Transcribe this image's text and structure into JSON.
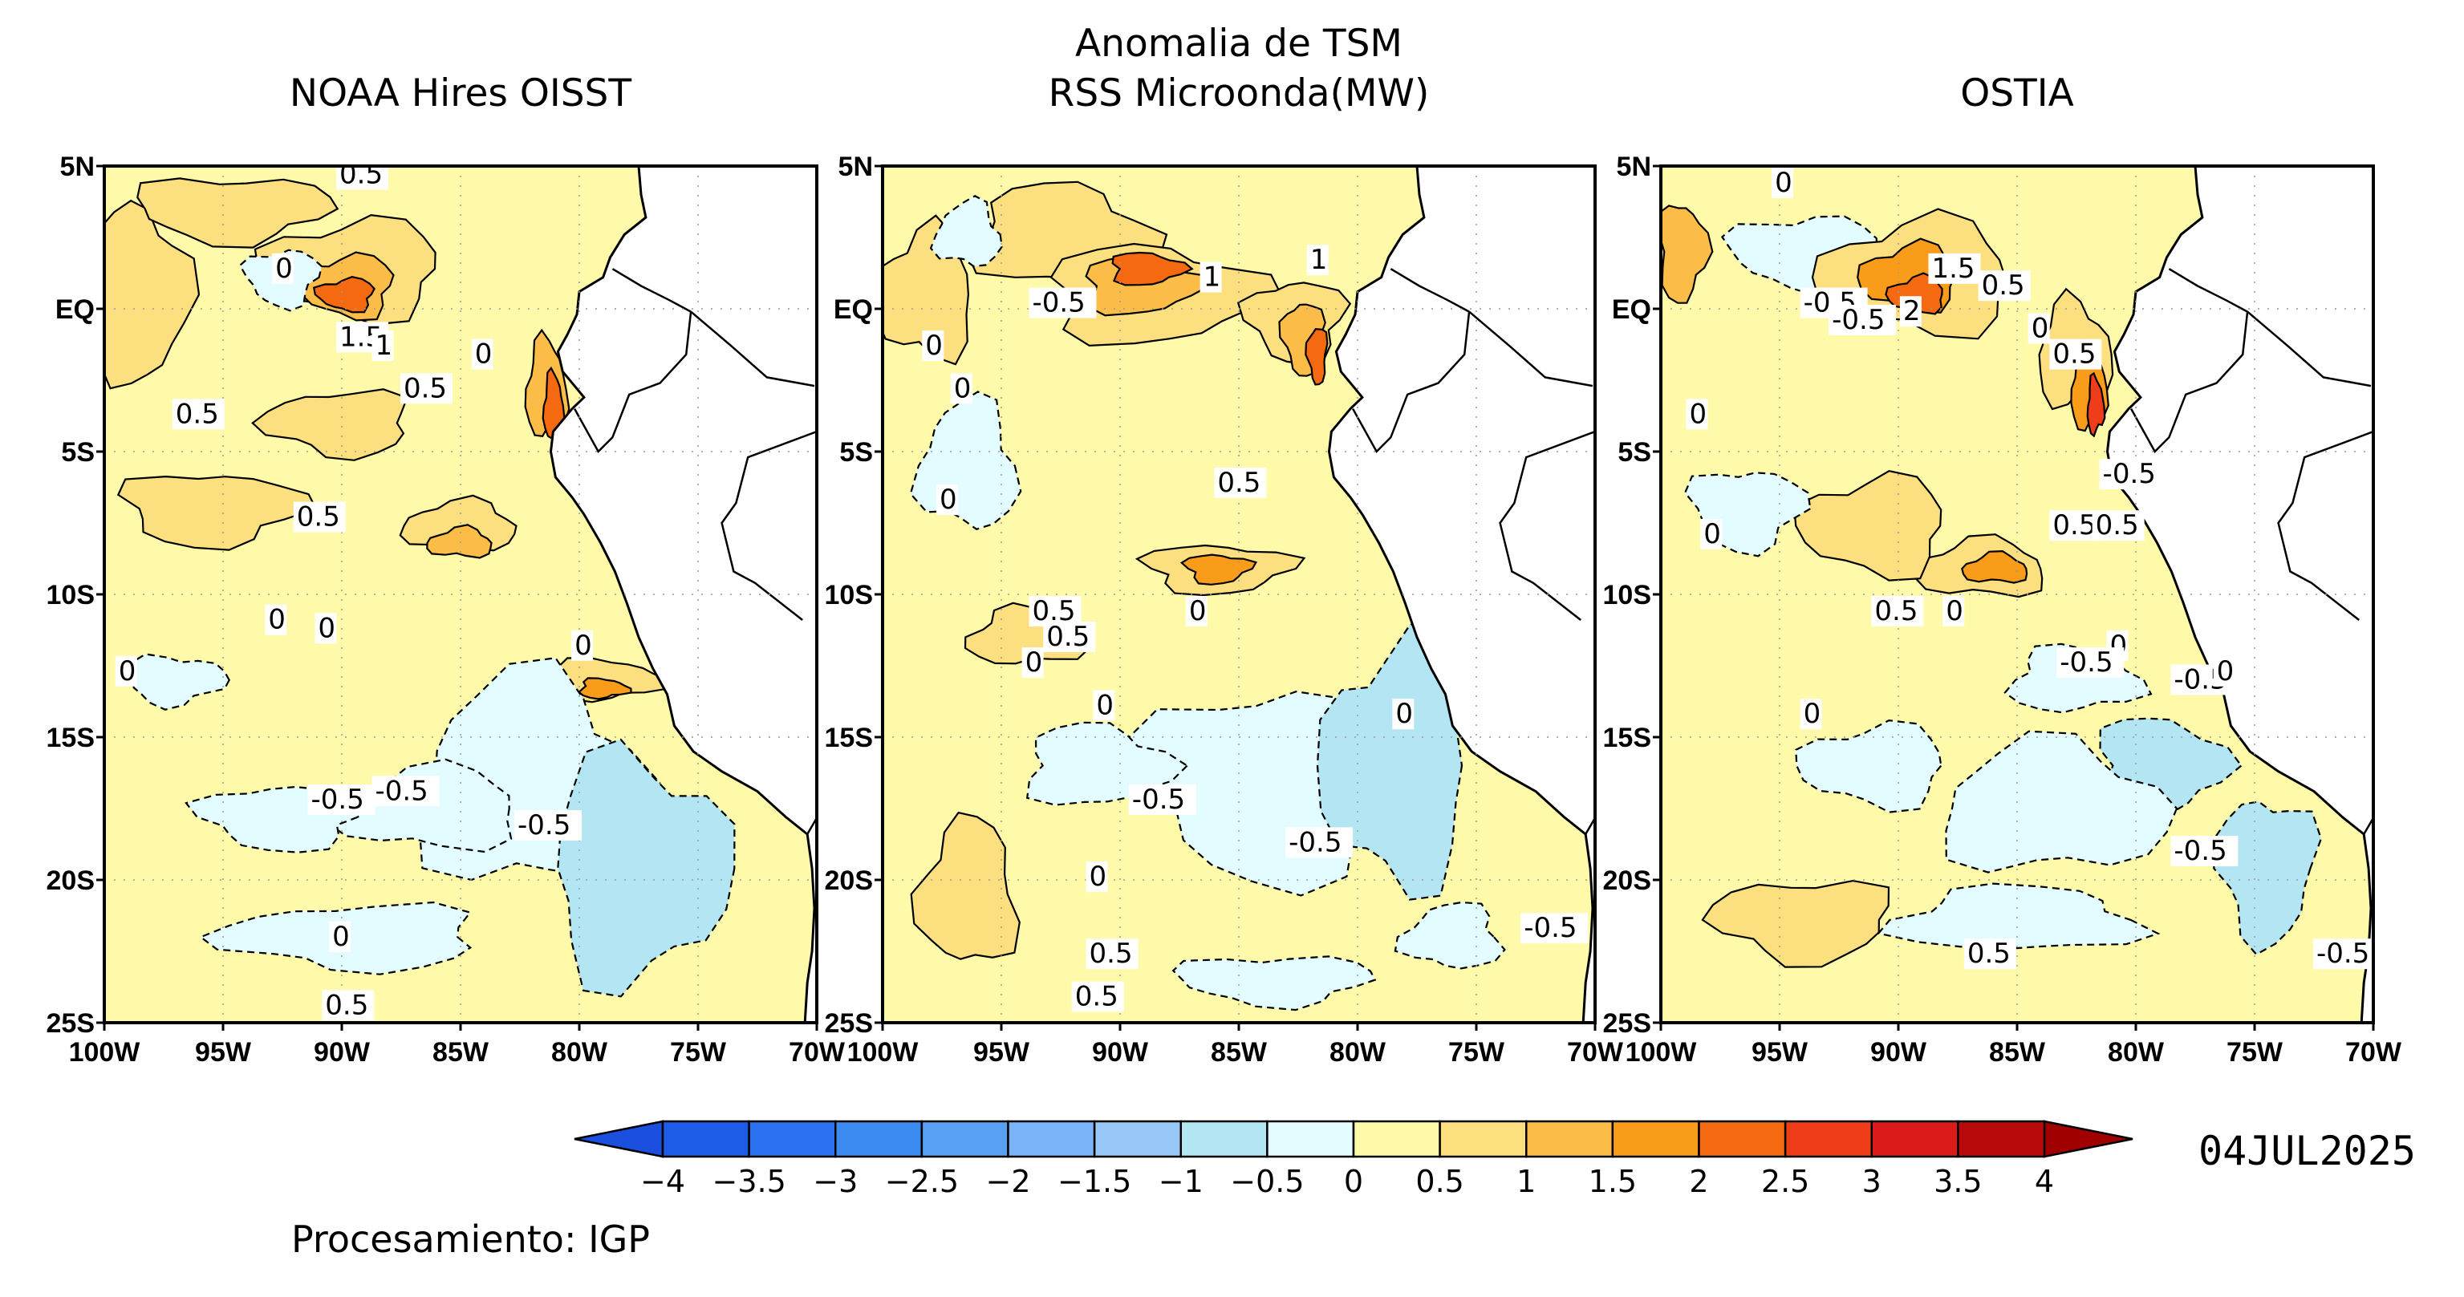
{
  "main_title": {
    "line1": "Anomalia de TSM",
    "line2": "RSS Microonda(MW)"
  },
  "panels": [
    {
      "id": "oisst",
      "title": "NOAA Hires OISST",
      "contour_labels": [
        "0.5",
        "0",
        "1.5",
        "1",
        "0",
        "0.5",
        "0.5",
        "0.5",
        "0",
        "0",
        "0",
        "0",
        "-0.5",
        "-0.5",
        "-0.5",
        "0",
        "0.5"
      ]
    },
    {
      "id": "rss",
      "title": "",
      "contour_labels": [
        "-0.5",
        "0",
        "0",
        "1",
        "1",
        "0",
        "0.5",
        "0",
        "0.5",
        "0",
        "0.5",
        "0",
        "0",
        "-0.5",
        "-0.5",
        "0",
        "-0.5",
        "0.5",
        "0.5"
      ]
    },
    {
      "id": "ostia",
      "title": "OSTIA",
      "contour_labels": [
        "0",
        "1.5",
        "0.5",
        "-0.5",
        "-0.5",
        "2",
        "0",
        "0.5",
        "0",
        "0",
        "-0.5",
        "0.5",
        "0.5",
        "0",
        "0.5",
        "0",
        "0",
        "-0.5",
        "-0.5",
        "0",
        "-0.5",
        "0.5",
        "-0.5"
      ]
    }
  ],
  "axes": {
    "lon_ticks": [
      "100W",
      "95W",
      "90W",
      "85W",
      "80W",
      "75W",
      "70W"
    ],
    "lat_ticks": [
      "5N",
      "EQ",
      "5S",
      "10S",
      "15S",
      "20S",
      "25S"
    ],
    "lon_range": [
      -100,
      -70
    ],
    "lat_range": [
      -25,
      5
    ]
  },
  "colorbar": {
    "ticks": [
      "-4",
      "-3.5",
      "-3",
      "-2.5",
      "-2",
      "-1.5",
      "-1",
      "-0.5",
      "0",
      "0.5",
      "1",
      "1.5",
      "2",
      "2.5",
      "3",
      "3.5",
      "4"
    ],
    "colors": [
      "#1e5be6",
      "#2a72f0",
      "#3a8aef",
      "#5aa0f2",
      "#78b4f7",
      "#97c8f7",
      "#b3e6f2",
      "#e2fcff",
      "#fffaaa",
      "#fce080",
      "#fbbc48",
      "#f99c1a",
      "#f56a10",
      "#ee3d18",
      "#dd1a1a",
      "#b80a0a"
    ],
    "under_color": "#1a4fe0",
    "over_color": "#a00000"
  },
  "date_label": "04JUL2025",
  "credit": "Procesamiento: IGP"
}
